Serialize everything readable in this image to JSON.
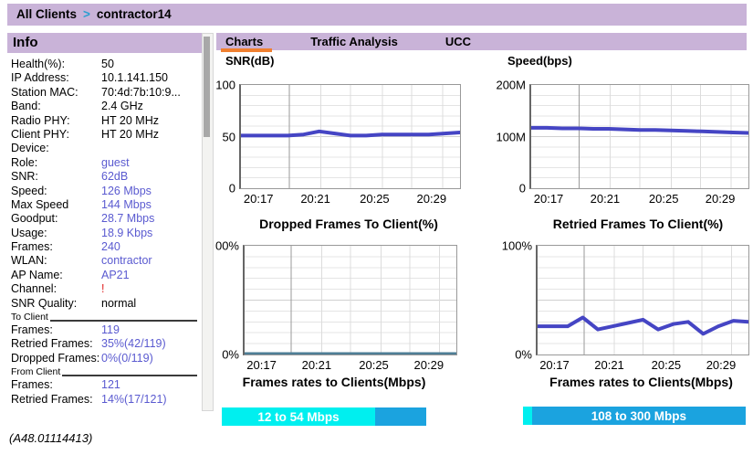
{
  "breadcrumb": {
    "parent": "All Clients",
    "separator": ">",
    "current": "contractor14"
  },
  "info": {
    "title": "Info",
    "rows": [
      {
        "label": "Health(%):",
        "value": "50",
        "style": "plain"
      },
      {
        "label": "IP Address:",
        "value": "10.1.141.150",
        "style": "plain"
      },
      {
        "label": "Station MAC:",
        "value": "70:4d:7b:10:9...",
        "style": "plain"
      },
      {
        "label": "Band:",
        "value": "2.4 GHz",
        "style": "plain"
      },
      {
        "label": "Radio PHY:",
        "value": "HT 20 MHz",
        "style": "plain"
      },
      {
        "label": "Client PHY:",
        "value": "HT 20 MHz",
        "style": "plain"
      },
      {
        "label": "Device:",
        "value": "",
        "style": "plain"
      },
      {
        "label": "Role:",
        "value": "guest",
        "style": "link"
      },
      {
        "label": "SNR:",
        "value": "62dB",
        "style": "link"
      },
      {
        "label": "Speed:",
        "value": "126 Mbps",
        "style": "link"
      },
      {
        "label": "Max Speed",
        "value": "144 Mbps",
        "style": "link"
      },
      {
        "label": "Goodput:",
        "value": "28.7 Mbps",
        "style": "link"
      },
      {
        "label": "Usage:",
        "value": "18.9 Kbps",
        "style": "link"
      },
      {
        "label": "Frames:",
        "value": "240",
        "style": "link"
      },
      {
        "label": "WLAN:",
        "value": "contractor",
        "style": "link"
      },
      {
        "label": "AP Name:",
        "value": "AP21",
        "style": "link"
      },
      {
        "label": "Channel:",
        "value": "!",
        "style": "alert"
      },
      {
        "label": "SNR Quality:",
        "value": "normal",
        "style": "plain"
      },
      {
        "section": "To Client"
      },
      {
        "label": "Frames:",
        "value": "119",
        "style": "link"
      },
      {
        "label": "Retried Frames:",
        "value": "35%(42/119)",
        "style": "link"
      },
      {
        "label": "Dropped Frames:",
        "value": "0%(0/119)",
        "style": "link"
      },
      {
        "section": "From Client"
      },
      {
        "label": "Frames:",
        "value": "121",
        "style": "link"
      },
      {
        "label": "Retried Frames:",
        "value": "14%(17/121)",
        "style": "link"
      }
    ]
  },
  "tabs": [
    {
      "label": "Charts",
      "active": true
    },
    {
      "label": "Traffic Analysis",
      "active": false
    },
    {
      "label": "UCC",
      "active": false
    }
  ],
  "footer": {
    "version": "(A48.01114413)"
  },
  "colors": {
    "header_lavender": "#C9B3D8",
    "tab_underline_orange": "#F08030",
    "link_text_blue": "#5A5AD0",
    "alert_red": "#E02020",
    "chart_line_blue": "#4545C4",
    "dropped_line_teal": "#4E7E96",
    "legend_cyan": "#00EFEF",
    "legend_blue": "#1BA3DF",
    "breadcrumb_arrow_blue": "#2A9FD0"
  },
  "chart_data": [
    {
      "type": "line",
      "title": "SNR(dB)",
      "x_start": "20:17",
      "x_interval_min": 1,
      "x_ticks": [
        {
          "label": "20:17",
          "f": 0.08
        },
        {
          "label": "20:21",
          "f": 0.34
        },
        {
          "label": "20:25",
          "f": 0.61
        },
        {
          "label": "20:29",
          "f": 0.87
        }
      ],
      "ylim": [
        0,
        100
      ],
      "y_ticks": [
        {
          "label": "100",
          "value": 100
        },
        {
          "label": "50",
          "value": 50
        },
        {
          "label": "0",
          "value": 0
        }
      ],
      "values": [
        51,
        51,
        51,
        51,
        52,
        55,
        53,
        51,
        51,
        52,
        52,
        52,
        52,
        53,
        54
      ],
      "line_color": "#4545C4",
      "line_width": 4,
      "grid": true,
      "legend_position": "none"
    },
    {
      "type": "line",
      "title": "Speed(bps)",
      "x_start": "20:17",
      "x_interval_min": 1,
      "x_ticks": [
        {
          "label": "20:17",
          "f": 0.08
        },
        {
          "label": "20:21",
          "f": 0.34
        },
        {
          "label": "20:25",
          "f": 0.61
        },
        {
          "label": "20:29",
          "f": 0.87
        }
      ],
      "ylim": [
        0,
        200
      ],
      "y_ticks": [
        {
          "label": "200M",
          "value": 200
        },
        {
          "label": "100M",
          "value": 100
        },
        {
          "label": "0",
          "value": 0
        }
      ],
      "values": [
        117,
        117,
        116,
        116,
        115,
        115,
        114,
        113,
        113,
        112,
        111,
        110,
        109,
        108,
        107
      ],
      "line_color": "#4545C4",
      "line_width": 4,
      "grid": true,
      "legend_position": "none"
    },
    {
      "type": "line",
      "title": "Dropped Frames To Client(%)",
      "x_start": "20:17",
      "x_interval_min": 1,
      "x_ticks": [
        {
          "label": "20:17",
          "f": 0.08
        },
        {
          "label": "20:21",
          "f": 0.34
        },
        {
          "label": "20:25",
          "f": 0.61
        },
        {
          "label": "20:29",
          "f": 0.87
        }
      ],
      "ylim": [
        0,
        100
      ],
      "y_ticks": [
        {
          "label": "00%",
          "value": 100
        },
        {
          "label": "0%",
          "value": 0
        }
      ],
      "values": [
        1,
        1,
        1,
        1,
        1,
        1,
        1,
        1,
        1,
        1,
        1,
        1,
        1,
        1,
        1
      ],
      "line_color": "#4E7E96",
      "line_width": 2.5,
      "grid": true,
      "legend_position": "none"
    },
    {
      "type": "line",
      "title": "Retried Frames To Client(%)",
      "x_start": "20:17",
      "x_interval_min": 1,
      "x_ticks": [
        {
          "label": "20:17",
          "f": 0.08
        },
        {
          "label": "20:21",
          "f": 0.34
        },
        {
          "label": "20:25",
          "f": 0.61
        },
        {
          "label": "20:29",
          "f": 0.87
        }
      ],
      "ylim": [
        0,
        100
      ],
      "y_ticks": [
        {
          "label": "100%",
          "value": 100
        },
        {
          "label": "0%",
          "value": 0
        }
      ],
      "values": [
        26,
        26,
        26,
        34,
        23,
        26,
        29,
        32,
        23,
        28,
        30,
        19,
        26,
        31,
        30
      ],
      "line_color": "#4545C4",
      "line_width": 4,
      "grid": true,
      "legend_position": "none"
    }
  ],
  "legend_bars": [
    {
      "title": "Frames rates to Clients(Mbps)",
      "segments": [
        {
          "label": "12 to 54 Mbps",
          "color": "#00EFEF",
          "pct": 75
        },
        {
          "label": "",
          "color": "#1BA3DF",
          "pct": 25
        }
      ]
    },
    {
      "title": "Frames rates to Clients(Mbps)",
      "segments": [
        {
          "label": "",
          "color": "#00EFEF",
          "pct": 4
        },
        {
          "label": "108 to 300 Mbps",
          "color": "#1BA3DF",
          "pct": 96
        }
      ]
    }
  ]
}
